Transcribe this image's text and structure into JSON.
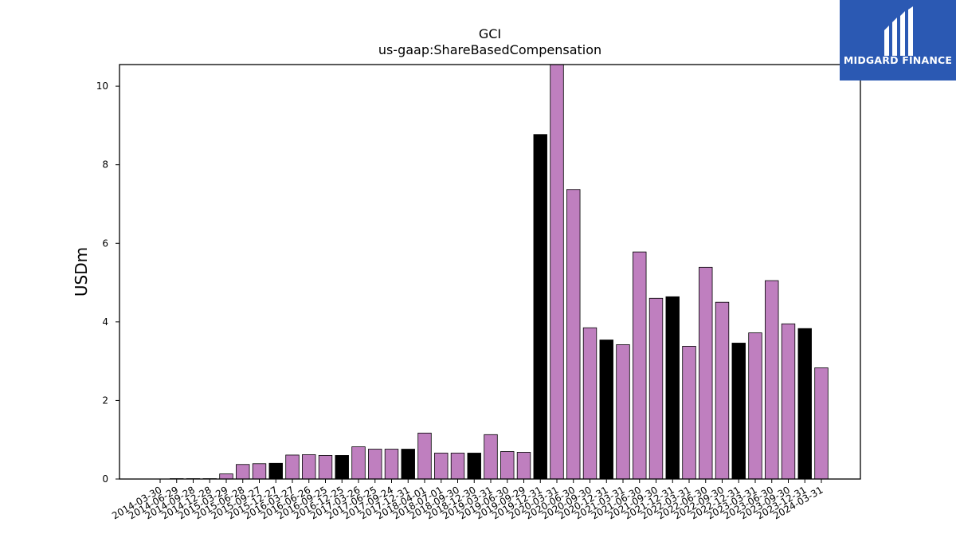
{
  "chart_data": {
    "type": "bar",
    "title": "GCI",
    "subtitle": "us-gaap:ShareBasedCompensation",
    "xlabel": "",
    "ylabel": "USDm",
    "ylim": [
      0,
      10.55
    ],
    "yticks": [
      0,
      2,
      4,
      6,
      8,
      10
    ],
    "grid": false,
    "categories": [
      "2014-03-30",
      "2014-06-29",
      "2014-09-28",
      "2014-12-28",
      "2015-03-29",
      "2015-06-28",
      "2015-09-27",
      "2015-12-27",
      "2016-03-27",
      "2016-06-26",
      "2016-09-25",
      "2016-12-25",
      "2017-03-26",
      "2017-06-25",
      "2017-09-24",
      "2017-12-31",
      "2018-04-01",
      "2018-07-01",
      "2018-09-30",
      "2018-12-30",
      "2019-03-31",
      "2019-06-30",
      "2019-09-29",
      "2019-12-31",
      "2020-03-31",
      "2020-06-30",
      "2020-09-30",
      "2020-12-31",
      "2021-03-31",
      "2021-06-30",
      "2021-09-30",
      "2021-12-31",
      "2022-03-31",
      "2022-06-30",
      "2022-09-30",
      "2022-12-31",
      "2023-03-31",
      "2023-06-30",
      "2023-09-30",
      "2023-12-31",
      "2024-03-31"
    ],
    "values": [
      0,
      0.01,
      0.01,
      0.01,
      0.13,
      0.37,
      0.39,
      0.4,
      0.61,
      0.62,
      0.6,
      0.6,
      0.82,
      0.76,
      0.76,
      0.76,
      1.17,
      0.66,
      0.66,
      0.66,
      1.13,
      0.7,
      0.68,
      8.77,
      10.55,
      7.37,
      3.85,
      3.54,
      3.42,
      5.78,
      4.6,
      4.64,
      3.38,
      5.39,
      4.5,
      3.46,
      3.72,
      5.05,
      3.95,
      3.83,
      2.83
    ],
    "highlight_indices": [
      3,
      7,
      11,
      15,
      19,
      23,
      27,
      31,
      35,
      39
    ],
    "colors": {
      "bar": "#bf7fbf",
      "highlight": "#000000",
      "edge": "#000000"
    }
  },
  "logo": {
    "text": "MIDGARD FINANCE",
    "background": "#2b59b3",
    "icon": "midgard-logo-icon"
  }
}
